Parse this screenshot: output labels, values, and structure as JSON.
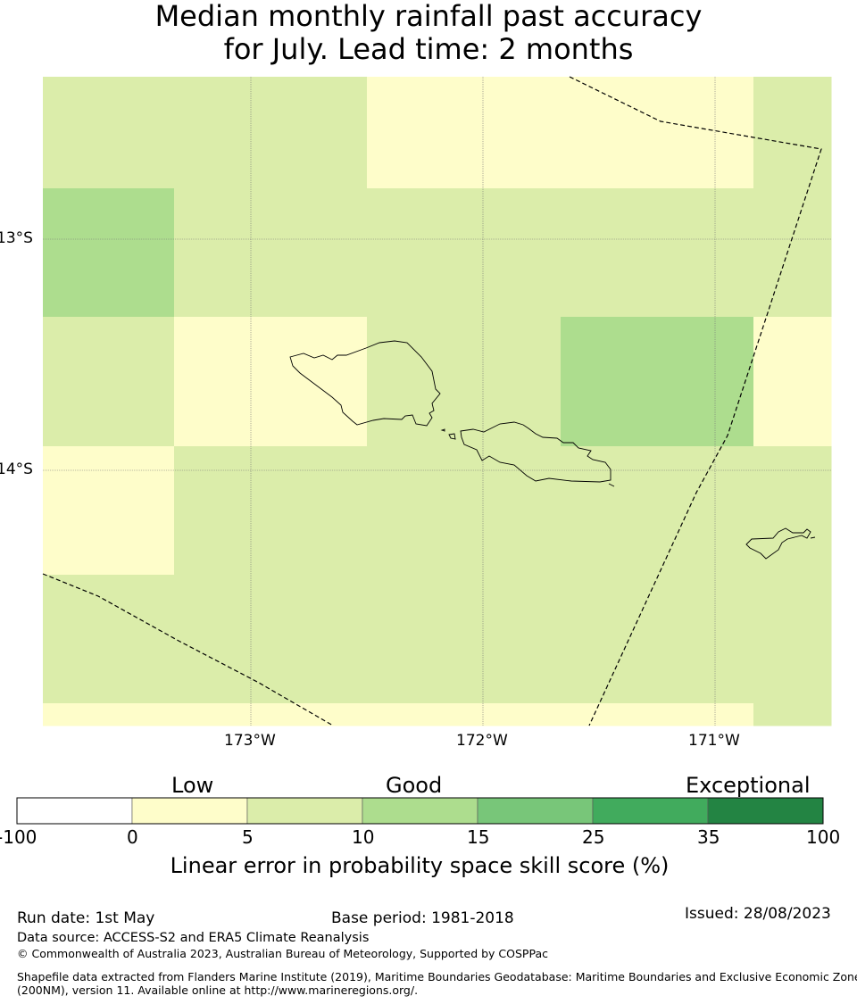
{
  "title": {
    "line1": "Median monthly rainfall past accuracy",
    "line2": "for July. Lead time: 2 months"
  },
  "map": {
    "lat_labels": [
      "13°S",
      "14°S"
    ],
    "lon_labels": [
      "173°W",
      "172°W",
      "171°W"
    ],
    "grid_cells": [
      {
        "row": 0,
        "col": 0,
        "cat": 2
      },
      {
        "row": 0,
        "col": 1,
        "cat": 2
      },
      {
        "row": 0,
        "col": 2,
        "cat": 1
      },
      {
        "row": 0,
        "col": 3,
        "cat": 1
      },
      {
        "row": 0,
        "col": 4,
        "cat": 2
      },
      {
        "row": 1,
        "col": 0,
        "cat": 3
      },
      {
        "row": 1,
        "col": 1,
        "cat": 2
      },
      {
        "row": 1,
        "col": 2,
        "cat": 2
      },
      {
        "row": 1,
        "col": 3,
        "cat": 2
      },
      {
        "row": 1,
        "col": 4,
        "cat": 2
      },
      {
        "row": 2,
        "col": 0,
        "cat": 2
      },
      {
        "row": 2,
        "col": 1,
        "cat": 1
      },
      {
        "row": 2,
        "col": 2,
        "cat": 2
      },
      {
        "row": 2,
        "col": 3,
        "cat": 3
      },
      {
        "row": 2,
        "col": 4,
        "cat": 1
      },
      {
        "row": 3,
        "col": 0,
        "cat": 1
      },
      {
        "row": 3,
        "col": 1,
        "cat": 2
      },
      {
        "row": 3,
        "col": 2,
        "cat": 2
      },
      {
        "row": 3,
        "col": 3,
        "cat": 2
      },
      {
        "row": 3,
        "col": 4,
        "cat": 2
      },
      {
        "row": 4,
        "col": 0,
        "cat": 2
      },
      {
        "row": 4,
        "col": 1,
        "cat": 2
      },
      {
        "row": 4,
        "col": 2,
        "cat": 2
      },
      {
        "row": 4,
        "col": 3,
        "cat": 2
      },
      {
        "row": 4,
        "col": 4,
        "cat": 2
      },
      {
        "row": 5,
        "col": 0,
        "cat": 1
      },
      {
        "row": 5,
        "col": 1,
        "cat": 1
      },
      {
        "row": 5,
        "col": 2,
        "cat": 1
      },
      {
        "row": 5,
        "col": 3,
        "cat": 1
      },
      {
        "row": 5,
        "col": 4,
        "cat": 2
      }
    ]
  },
  "colorbar": {
    "categories": [
      "Low",
      "Good",
      "Exceptional"
    ],
    "ticks": [
      "-100",
      "0",
      "5",
      "10",
      "15",
      "25",
      "35",
      "100"
    ],
    "colors": [
      "#ffffff",
      "#fefdca",
      "#dbedaa",
      "#addd8e",
      "#78c679",
      "#41ab5d",
      "#238443"
    ],
    "label": "Linear error in probability space skill score (%)"
  },
  "footer": {
    "run_date": "Run date: 1st May",
    "base_period": "Base period: 1981-2018",
    "issued": "Issued: 28/08/2023",
    "data_source": "Data source: ACCESS-S2 and ERA5 Climate Reanalysis",
    "copyright": "© Commonwealth of Australia 2023, Australian Bureau of Meteorology, Supported by COSPPac",
    "shapefile_line1": "Shapefile data extracted from Flanders Marine Institute (2019), Maritime Boundaries Geodatabase: Maritime Boundaries and Exclusive Economic Zones",
    "shapefile_line2": "(200NM), version 11. Available online at http://www.marineregions.org/."
  }
}
